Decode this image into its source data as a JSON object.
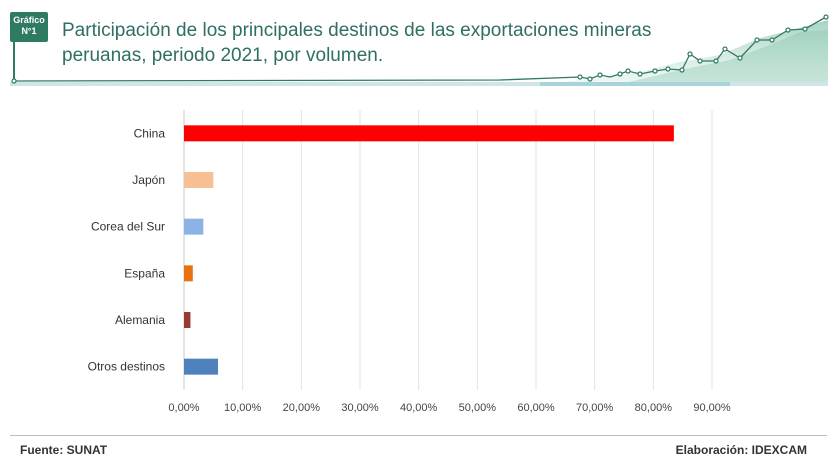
{
  "header": {
    "badge_line1": "Gráfico",
    "badge_line2": "N°1",
    "title": "Participación de los principales destinos de las exportaciones mineras peruanas, periodo 2021, por volumen."
  },
  "footer": {
    "source": "Fuente: SUNAT",
    "credit": "Elaboración: IDEXCAM"
  },
  "chart_data": {
    "type": "bar",
    "orientation": "horizontal",
    "categories": [
      "China",
      "Japón",
      "Corea del Sur",
      "España",
      "Alemania",
      "Otros destinos"
    ],
    "values": [
      83.5,
      5.0,
      3.3,
      1.5,
      1.1,
      5.8
    ],
    "colors": [
      "#ff0000",
      "#f7bf94",
      "#8db3e6",
      "#e8730e",
      "#9a3a32",
      "#4f81bd"
    ],
    "xticks": [
      "0,00%",
      "10,00%",
      "20,00%",
      "30,00%",
      "40,00%",
      "50,00%",
      "60,00%",
      "70,00%",
      "80,00%",
      "90,00%"
    ],
    "xlim": [
      0,
      90
    ],
    "grid": true,
    "legend": "none"
  },
  "colors": {
    "accent": "#2f7a63",
    "title": "#2f6f63"
  }
}
